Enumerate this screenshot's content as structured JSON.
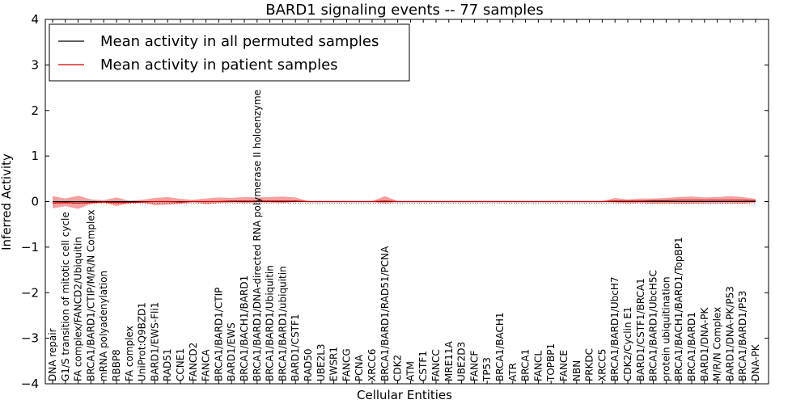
{
  "chart_data": {
    "type": "line",
    "title": "BARD1 signaling events -- 77 samples",
    "xlabel": "Cellular Entities",
    "ylabel": "Inferred Activity",
    "ylim": [
      -4,
      4
    ],
    "yticks": [
      4,
      3,
      2,
      1,
      0,
      -1,
      -2,
      -3,
      -4
    ],
    "legend_position": "top-left",
    "categories": [
      "DNA repair",
      "G1/S transition of mitotic cell cycle",
      "FA complex/FANCD2/Ubiquitin",
      "BRCA1/BARD1/CTIP/M/R/N Complex",
      "mRNA polyadenylation",
      "RBBP8",
      "FA complex",
      "UniProt:Q9BZD1",
      "BARD1/EWS-Fli1",
      "RAD51",
      "CCNE1",
      "FANCD2",
      "FANCA",
      "BRCA1/BARD1/CTIP",
      "BARD1/EWS",
      "BRCA1/BACH1/BARD1",
      "BRCA1/BARD1/DNA-directed RNA polymerase II holoenzyme",
      "BRCA1/BARD1/Ubiquitin",
      "BRCA1/BARD1/ubiquitin",
      "BARD1/CSTF1",
      "RAD50",
      "UBE2L3",
      "EWSR1",
      "FANCG",
      "PCNA",
      "XRCC6",
      "BRCA1/BARD1/RAD51/PCNA",
      "CDK2",
      "ATM",
      "CSTF1",
      "FANCC",
      "MRE11A",
      "UBE2D3",
      "FANCF",
      "TP53",
      "BRCA1/BACH1",
      "ATR",
      "BRCA1",
      "FANCL",
      "TOPBP1",
      "FANCE",
      "NBN",
      "PRKDC",
      "XRCC5",
      "BRCA1/BARD1/UbcH7",
      "CDK2/Cyclin E1",
      "BARD1/CSTF1/BRCA1",
      "BRCA1/BARD1/UbcH5C",
      "protein ubiquitination",
      "BRCA1/BACH1/BARD1/TopBP1",
      "BRCA1/BARD1",
      "BARD1/DNA-PK",
      "M/R/N Complex",
      "BARD1/DNA-PK/P53",
      "BRCA1/BARD1/P53",
      "DNA-PK"
    ],
    "series": [
      {
        "name": "Mean activity in all permuted samples",
        "color": "#000000",
        "values": [
          0,
          0,
          0,
          0,
          0,
          0,
          0,
          0,
          0,
          0,
          0,
          0,
          0,
          0,
          0,
          0,
          0,
          0,
          0,
          0,
          0,
          0,
          0,
          0,
          0,
          0,
          0,
          0,
          0,
          0,
          0,
          0,
          0,
          0,
          0,
          0,
          0,
          0,
          0,
          0,
          0,
          0,
          0,
          0,
          0,
          0,
          0,
          0,
          0,
          0,
          0,
          0,
          0,
          0,
          0,
          0
        ],
        "lower": [
          -0.02,
          -0.02,
          -0.02,
          -0.02,
          -0.02,
          -0.02,
          -0.02,
          -0.02,
          -0.02,
          -0.02,
          -0.02,
          -0.02,
          -0.02,
          -0.02,
          -0.02,
          -0.02,
          -0.02,
          -0.02,
          -0.02,
          -0.02,
          -0.02,
          -0.02,
          -0.02,
          -0.02,
          -0.02,
          -0.02,
          -0.02,
          -0.02,
          -0.02,
          -0.02,
          -0.02,
          -0.02,
          -0.02,
          -0.02,
          -0.02,
          -0.02,
          -0.02,
          -0.02,
          -0.02,
          -0.02,
          -0.02,
          -0.02,
          -0.02,
          -0.02,
          -0.02,
          -0.02,
          -0.02,
          -0.02,
          -0.02,
          -0.02,
          -0.02,
          -0.02,
          -0.02,
          -0.02,
          -0.02,
          -0.02
        ],
        "upper": [
          0.02,
          0.02,
          0.02,
          0.02,
          0.02,
          0.02,
          0.02,
          0.02,
          0.02,
          0.02,
          0.02,
          0.02,
          0.02,
          0.02,
          0.02,
          0.02,
          0.02,
          0.02,
          0.02,
          0.02,
          0.02,
          0.02,
          0.02,
          0.02,
          0.02,
          0.02,
          0.02,
          0.02,
          0.02,
          0.02,
          0.02,
          0.02,
          0.02,
          0.02,
          0.02,
          0.02,
          0.02,
          0.02,
          0.02,
          0.02,
          0.02,
          0.02,
          0.02,
          0.02,
          0.02,
          0.02,
          0.02,
          0.02,
          0.02,
          0.02,
          0.02,
          0.02,
          0.02,
          0.02,
          0.02,
          0.02
        ],
        "band_color": "#cccccc"
      },
      {
        "name": "Mean activity in patient samples",
        "color": "#cc0000",
        "values": [
          -0.03,
          -0.02,
          -0.03,
          -0.02,
          -0.01,
          -0.02,
          -0.02,
          -0.01,
          0,
          0,
          -0.01,
          0,
          0,
          0,
          0.01,
          0.01,
          0.01,
          0.01,
          0.01,
          0.01,
          0,
          0,
          0,
          0,
          0,
          0,
          0.01,
          0,
          0,
          0,
          0,
          0,
          0,
          0,
          0,
          0,
          0,
          0,
          0,
          0,
          0,
          0,
          0,
          0,
          0.01,
          0.01,
          0.01,
          0.02,
          0.02,
          0.03,
          0.03,
          0.03,
          0.03,
          0.03,
          0.03,
          0.02
        ],
        "lower": [
          -0.15,
          -0.1,
          -0.16,
          -0.05,
          -0.02,
          -0.1,
          -0.03,
          -0.02,
          -0.08,
          -0.07,
          -0.05,
          -0.01,
          -0.06,
          -0.03,
          -0.02,
          -0.03,
          -0.02,
          -0.02,
          -0.03,
          -0.01,
          -0.01,
          -0.01,
          -0.01,
          -0.01,
          -0.01,
          -0.01,
          -0.04,
          -0.01,
          -0.01,
          -0.01,
          -0.01,
          -0.01,
          -0.01,
          -0.01,
          -0.01,
          -0.01,
          -0.01,
          -0.01,
          -0.01,
          -0.01,
          -0.01,
          -0.01,
          -0.01,
          -0.01,
          -0.02,
          -0.04,
          -0.03,
          -0.05,
          -0.04,
          -0.05,
          -0.05,
          -0.04,
          -0.04,
          -0.04,
          -0.05,
          -0.02
        ],
        "upper": [
          0.12,
          0.07,
          0.13,
          0.05,
          0.03,
          0.09,
          0.02,
          0.04,
          0.08,
          0.1,
          0.06,
          0.04,
          0.07,
          0.09,
          0.08,
          0.1,
          0.09,
          0.1,
          0.11,
          0.09,
          0.01,
          0.01,
          0.01,
          0.01,
          0.01,
          0.01,
          0.12,
          0.01,
          0.01,
          0.01,
          0.01,
          0.01,
          0.01,
          0.01,
          0.01,
          0.01,
          0.01,
          0.01,
          0.01,
          0.01,
          0.01,
          0.01,
          0.01,
          0.01,
          0.08,
          0.05,
          0.07,
          0.07,
          0.08,
          0.1,
          0.11,
          0.09,
          0.1,
          0.12,
          0.1,
          0.06
        ],
        "band_color": "#f08080"
      }
    ]
  }
}
